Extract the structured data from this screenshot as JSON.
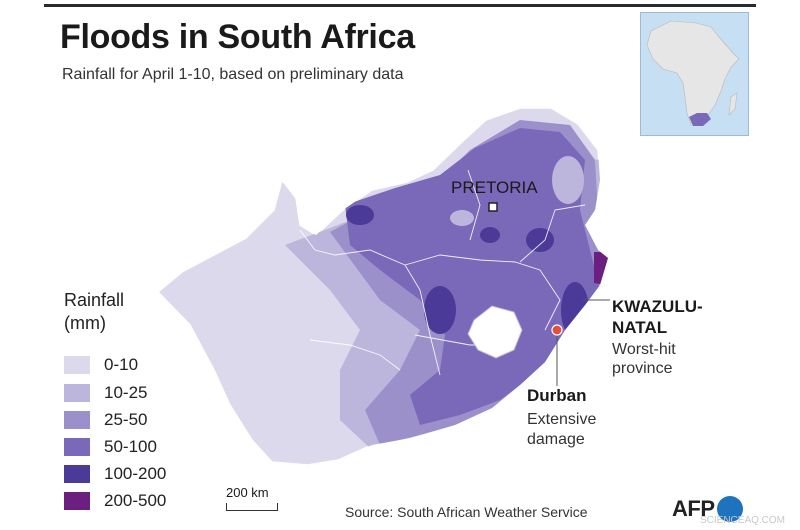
{
  "title": "Floods in South Africa",
  "subtitle": "Rainfall for April 1-10, based on preliminary data",
  "legend": {
    "title_line1": "Rainfall",
    "title_line2": "(mm)",
    "items": [
      {
        "label": "0-10",
        "color": "#ddd9ec"
      },
      {
        "label": "10-25",
        "color": "#bdb6dc"
      },
      {
        "label": "25-50",
        "color": "#9c90cb"
      },
      {
        "label": "50-100",
        "color": "#7a68b8"
      },
      {
        "label": "100-200",
        "color": "#4b3a97"
      },
      {
        "label": "200-500",
        "color": "#6b1f7f"
      }
    ]
  },
  "labels": {
    "pretoria": "PRETORIA",
    "kzn_line1": "KWAZULU-",
    "kzn_line2": "NATAL",
    "kzn_sub1": "Worst-hit",
    "kzn_sub2": "province",
    "durban": "Durban",
    "durban_sub1": "Extensive",
    "durban_sub2": "damage"
  },
  "scale": "200 km",
  "source": "Source: South African Weather Service",
  "logo": "AFP",
  "watermark": "SCIENCEAQ.COM",
  "colors": {
    "durban_marker": "#e0503c",
    "inset_ocean": "#c7dff2",
    "inset_land": "#e6e6e6",
    "inset_highlight": "#7a68b8"
  }
}
